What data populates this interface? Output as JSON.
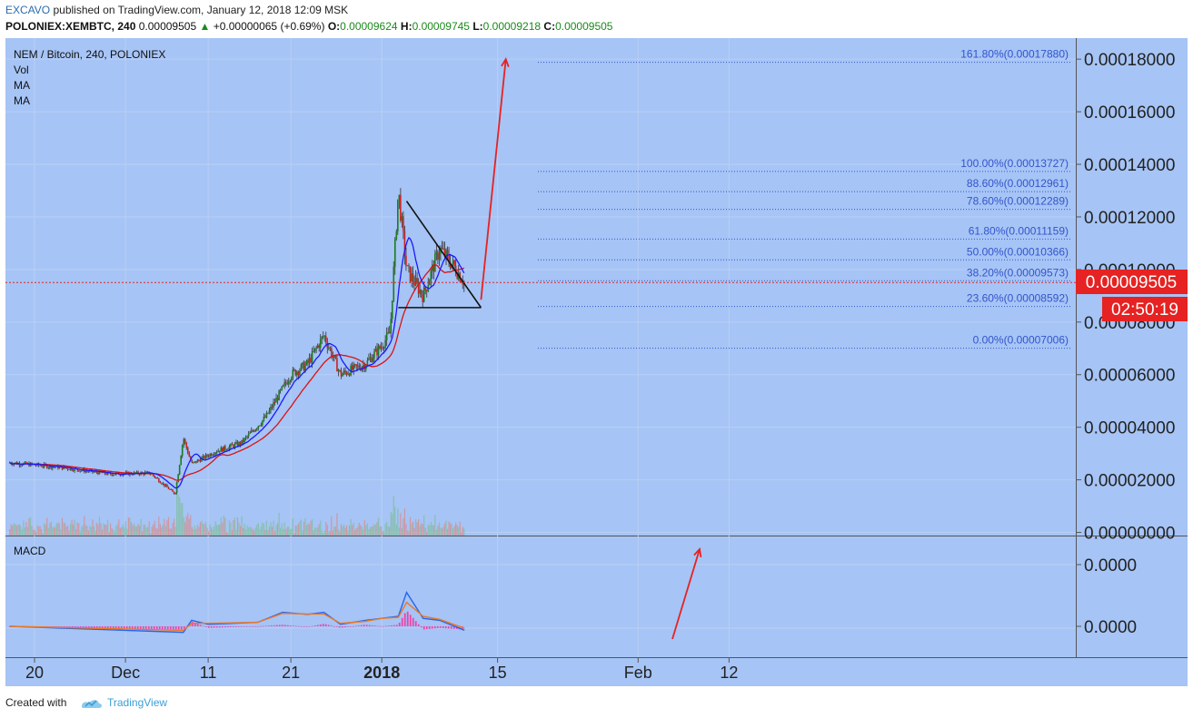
{
  "header": {
    "author": "EXCAVO",
    "published": "published on TradingView.com, January 12, 2018 12:09 MSK",
    "symbol": "POLONIEX:XEMBTC, 240",
    "last": "0.00009505",
    "change": "+0.00000065 (+0.69%)",
    "o_label": "O:",
    "o_value": "0.00009624",
    "h_label": "H:",
    "h_value": "0.00009745",
    "l_label": "L:",
    "l_value": "0.00009218",
    "c_label": "C:",
    "c_value": "0.00009505"
  },
  "legend": {
    "title": "NEM / Bitcoin, 240, POLONIEX",
    "vol": "Vol",
    "ma1": "MA",
    "ma2": "MA",
    "macd": "MACD"
  },
  "price_tag": {
    "value": "0.00009505",
    "countdown": "02:50:19",
    "color": "#e62222"
  },
  "footer": {
    "created": "Created with",
    "brand": "TradingView"
  },
  "colors": {
    "background": "#a6c4f5",
    "up": "#1f7a1f",
    "down": "#cc2222",
    "ma_fast": "#1a1aff",
    "ma_slow": "#dd1111",
    "macd_line": "#2266ee",
    "signal_line": "#ee7722",
    "histogram": "#ee44aa",
    "arrow": "#e62222",
    "fib": "#3355cc"
  },
  "chart_data": [
    {
      "type": "candlestick",
      "title": "NEM / Bitcoin, 240, POLONIEX",
      "x_ticks": [
        "20",
        "Dec",
        "11",
        "21",
        "2018",
        "15",
        "Feb",
        "12"
      ],
      "y_ticks": [
        "0.00000000",
        "0.00002000",
        "0.00004000",
        "0.00006000",
        "0.00008000",
        "0.00010000",
        "0.00012000",
        "0.00014000",
        "0.00016000",
        "0.00018000"
      ],
      "ylim": [
        -1.2e-06,
        0.000188
      ],
      "trend": {
        "x": [
          "2017-11-17",
          "2017-11-23",
          "2017-11-29",
          "2017-12-04",
          "2017-12-07",
          "2017-12-08",
          "2017-12-09",
          "2017-12-12",
          "2017-12-15",
          "2017-12-18",
          "2017-12-21",
          "2017-12-23",
          "2017-12-25",
          "2017-12-27",
          "2017-12-30",
          "2018-01-01",
          "2018-01-02",
          "2018-01-03",
          "2018-01-04",
          "2018-01-06",
          "2018-01-08",
          "2018-01-10",
          "2018-01-11"
        ],
        "close": [
          2.65e-05,
          2.48e-05,
          2.22e-05,
          2.26e-05,
          1.45e-05,
          3.6e-05,
          2.6e-05,
          3.1e-05,
          3.4e-05,
          4.4e-05,
          6e-05,
          6.4e-05,
          7.5e-05,
          6e-05,
          6.4e-05,
          7.1e-05,
          7.6e-05,
          0.00013,
          0.0001,
          9e-05,
          0.000108,
          0.0001,
          9.5e-05
        ]
      },
      "annotations": {
        "fibonacci": [
          {
            "label": "161.80%(0.00017880)",
            "level": 0.0001788
          },
          {
            "label": "100.00%(0.00013727)",
            "level": 0.00013727
          },
          {
            "label": "88.60%(0.00012961)",
            "level": 0.00012961
          },
          {
            "label": "78.60%(0.00012289)",
            "level": 0.00012289
          },
          {
            "label": "61.80%(0.00011159)",
            "level": 0.00011159
          },
          {
            "label": "50.00%(0.00010366)",
            "level": 0.00010366
          },
          {
            "label": "38.20%(0.00009573)",
            "level": 9.573e-05
          },
          {
            "label": "23.60%(0.00008592)",
            "level": 8.592e-05
          },
          {
            "label": "0.00%(0.00007006)",
            "level": 7.006e-05
          }
        ],
        "triangle": {
          "top": [
            "2018-01-04",
            0.000126
          ],
          "apex": [
            "2018-01-13",
            8.55e-05
          ],
          "base_start": [
            "2018-01-03",
            8.55e-05
          ]
        },
        "arrow": {
          "from": [
            "2018-01-13",
            8.85e-05
          ],
          "to": [
            "2018-01-16",
            0.00018
          ]
        }
      }
    },
    {
      "type": "line",
      "title": "MACD",
      "y_ticks": [
        "0.0000",
        "0.0000"
      ],
      "series": [
        {
          "x": [
            "2017-11-17",
            "2017-12-08",
            "2017-12-09",
            "2017-12-11",
            "2017-12-17",
            "2017-12-20",
            "2017-12-23",
            "2017-12-25",
            "2017-12-27",
            "2017-12-30",
            "2018-01-01",
            "2018-01-03",
            "2018-01-04",
            "2018-01-06",
            "2018-01-08",
            "2018-01-11"
          ],
          "y": [
            0,
            -3e-06,
            3e-06,
            1e-06,
            2e-06,
            7e-06,
            6e-06,
            7e-06,
            1e-06,
            3e-06,
            4e-06,
            5e-06,
            1.7e-05,
            4e-06,
            3e-06,
            -2e-06
          ]
        },
        {
          "x": [
            "2017-11-17",
            "2017-12-08",
            "2017-12-09",
            "2017-12-11",
            "2017-12-17",
            "2017-12-20",
            "2017-12-23",
            "2017-12-25",
            "2017-12-27",
            "2017-12-30",
            "2018-01-01",
            "2018-01-03",
            "2018-01-04",
            "2018-01-06",
            "2018-01-08",
            "2018-01-11"
          ],
          "y": [
            0,
            -2e-06,
            1.5e-06,
            1.5e-06,
            2e-06,
            6.5e-06,
            6.2e-06,
            6.2e-06,
            1.5e-06,
            2.5e-06,
            4e-06,
            4.5e-06,
            1.2e-05,
            5e-06,
            3.5e-06,
            -1e-06
          ]
        }
      ]
    }
  ]
}
